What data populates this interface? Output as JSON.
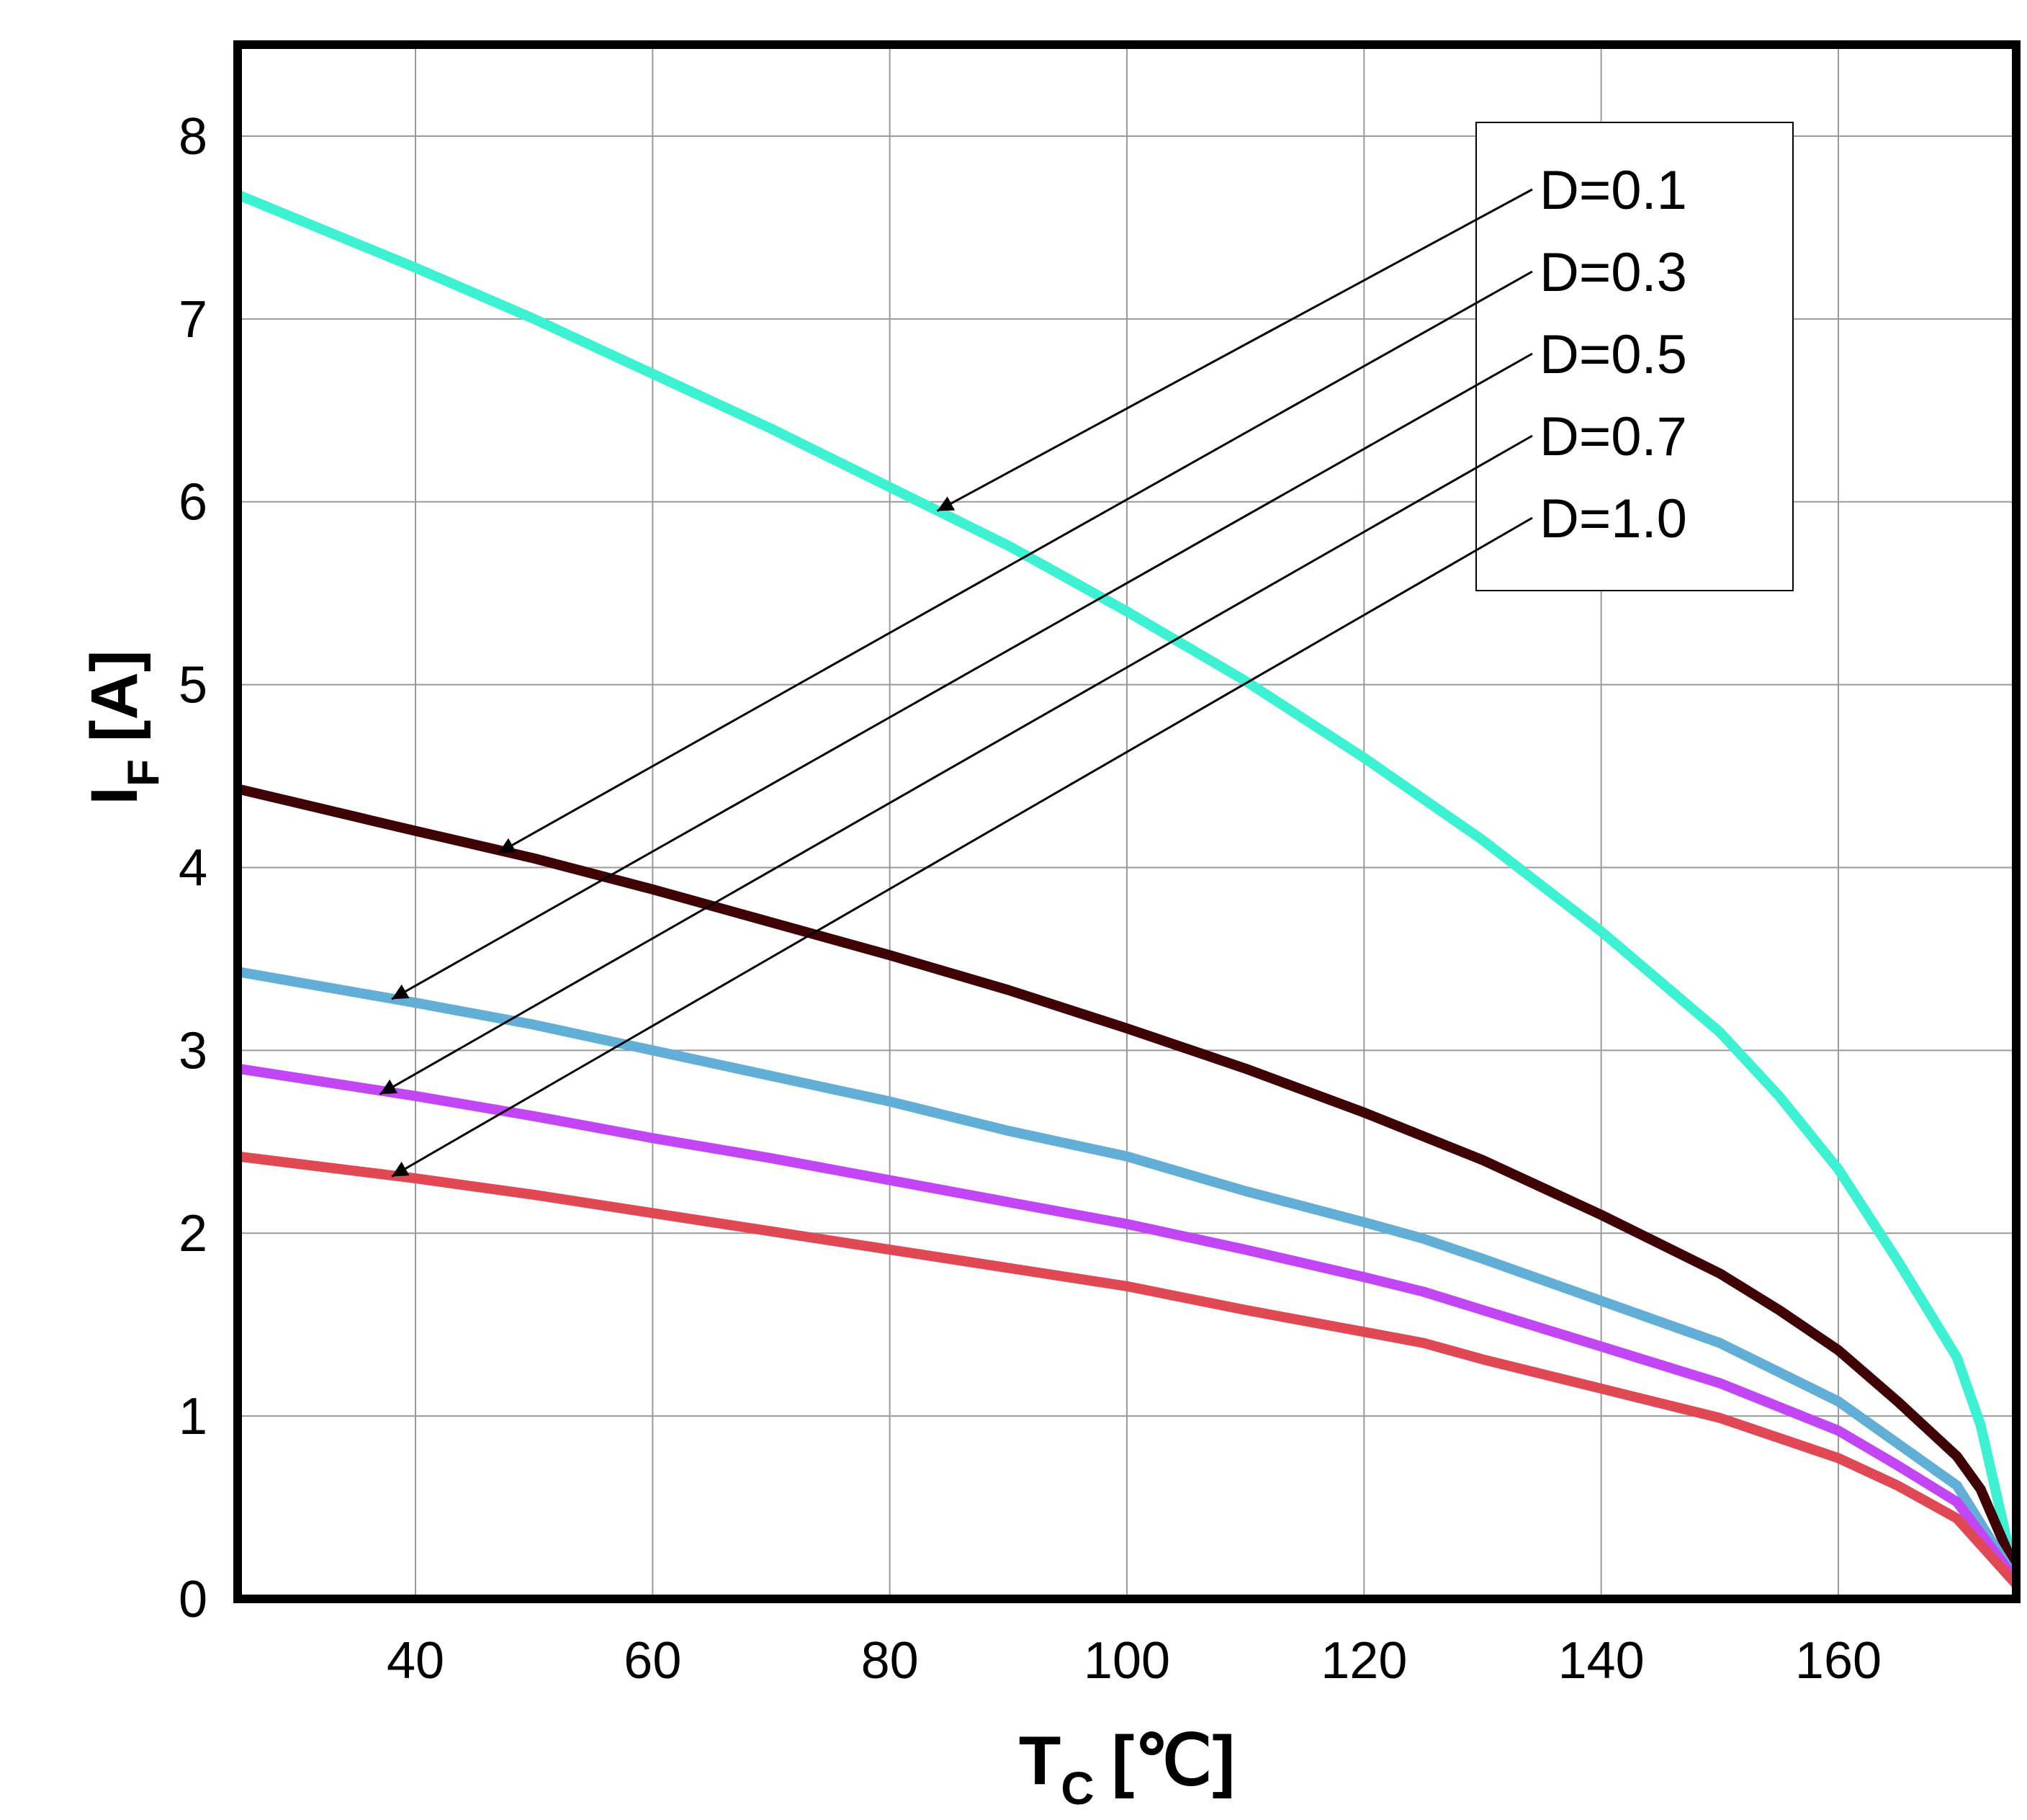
{
  "chart_data": {
    "type": "line",
    "title": "",
    "xlabel": {
      "main": "T",
      "sub": "C",
      "unit": "[℃]"
    },
    "ylabel": {
      "main": "I",
      "sub": "F",
      "unit": "[A]"
    },
    "xlim": [
      25,
      175
    ],
    "ylim": [
      0,
      8.5
    ],
    "x_ticks": [
      40,
      60,
      80,
      100,
      120,
      140,
      160
    ],
    "y_ticks": [
      0,
      1,
      2,
      3,
      4,
      5,
      6,
      7,
      8
    ],
    "x_gridlines": [
      40,
      60,
      80,
      100,
      120,
      140,
      160
    ],
    "y_gridlines": [
      1,
      2,
      3,
      4,
      5,
      6,
      7,
      8
    ],
    "grid": true,
    "legend_position": "top-right",
    "series": [
      {
        "name": "D=0.1",
        "color": "#3cf2d3",
        "x": [
          25,
          40,
          50,
          60,
          70,
          80,
          90,
          100,
          110,
          120,
          130,
          140,
          150,
          155,
          160,
          165,
          170,
          172,
          175
        ],
        "y": [
          7.68,
          7.28,
          7.0,
          6.7,
          6.4,
          6.08,
          5.76,
          5.4,
          5.02,
          4.6,
          4.15,
          3.65,
          3.1,
          2.75,
          2.35,
          1.85,
          1.32,
          0.95,
          0.1
        ],
        "arrow_at": [
          84,
          5.95
        ]
      },
      {
        "name": "D=0.3",
        "color": "#3f0305",
        "x": [
          25,
          40,
          50,
          60,
          70,
          80,
          90,
          100,
          110,
          120,
          125,
          130,
          140,
          150,
          155,
          160,
          165,
          170,
          172,
          175
        ],
        "y": [
          4.43,
          4.2,
          4.05,
          3.88,
          3.7,
          3.52,
          3.33,
          3.12,
          2.9,
          2.66,
          2.53,
          2.4,
          2.1,
          1.78,
          1.58,
          1.36,
          1.08,
          0.78,
          0.6,
          0.15
        ],
        "arrow_at": [
          47,
          4.08
        ]
      },
      {
        "name": "D=0.5",
        "color": "#61aed6",
        "x": [
          25,
          40,
          50,
          60,
          70,
          80,
          90,
          100,
          110,
          120,
          125,
          130,
          140,
          150,
          160,
          165,
          170,
          175
        ],
        "y": [
          3.43,
          3.26,
          3.14,
          3.0,
          2.86,
          2.72,
          2.56,
          2.42,
          2.23,
          2.06,
          1.97,
          1.86,
          1.63,
          1.4,
          1.08,
          0.85,
          0.62,
          0.1
        ],
        "arrow_at": [
          38,
          3.28
        ]
      },
      {
        "name": "D=0.7",
        "color": "#c246f5",
        "x": [
          25,
          40,
          50,
          60,
          70,
          80,
          90,
          100,
          110,
          120,
          125,
          130,
          140,
          150,
          160,
          165,
          170,
          175
        ],
        "y": [
          2.9,
          2.75,
          2.64,
          2.52,
          2.41,
          2.29,
          2.17,
          2.05,
          1.91,
          1.76,
          1.68,
          1.58,
          1.38,
          1.18,
          0.92,
          0.73,
          0.53,
          0.1
        ],
        "arrow_at": [
          37,
          2.76
        ]
      },
      {
        "name": "D=1.0",
        "color": "#e04953",
        "x": [
          25,
          40,
          50,
          60,
          70,
          80,
          90,
          100,
          110,
          120,
          125,
          130,
          140,
          150,
          160,
          165,
          170,
          175
        ],
        "y": [
          2.42,
          2.3,
          2.21,
          2.11,
          2.01,
          1.91,
          1.81,
          1.71,
          1.58,
          1.46,
          1.4,
          1.31,
          1.15,
          0.99,
          0.77,
          0.62,
          0.44,
          0.08
        ],
        "arrow_at": [
          38,
          2.31
        ]
      }
    ]
  }
}
